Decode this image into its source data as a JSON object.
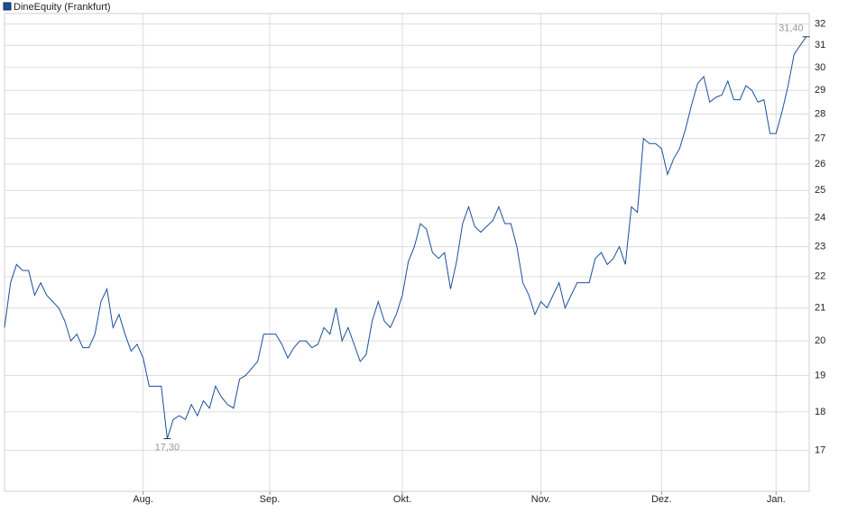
{
  "chart_data": {
    "type": "line",
    "log_scale": true,
    "grid": true,
    "ylim": [
      16,
      32.5
    ],
    "yticks": [
      17,
      18,
      19,
      20,
      21,
      22,
      23,
      24,
      25,
      26,
      27,
      28,
      29,
      30,
      31,
      32
    ],
    "xlim": [
      0,
      133.5
    ],
    "xticks": [
      {
        "value": 23,
        "label": "Aug."
      },
      {
        "value": 44,
        "label": "Sep."
      },
      {
        "value": 66,
        "label": "Okt."
      },
      {
        "value": 89,
        "label": "Nov."
      },
      {
        "value": 109,
        "label": "Dez."
      },
      {
        "value": 128,
        "label": "Jan."
      }
    ],
    "series": [
      {
        "name": "DineEquity (Frankfurt)",
        "color": "#1a4f9c",
        "values": [
          20.4,
          21.8,
          22.4,
          22.2,
          22.2,
          21.4,
          21.8,
          21.4,
          21.2,
          21.0,
          20.6,
          20.0,
          20.2,
          19.8,
          19.8,
          20.2,
          21.2,
          21.6,
          20.4,
          20.8,
          20.2,
          19.7,
          19.9,
          19.5,
          18.7,
          18.7,
          18.7,
          17.3,
          17.8,
          17.9,
          17.8,
          18.2,
          17.9,
          18.3,
          18.1,
          18.7,
          18.4,
          18.2,
          18.1,
          18.9,
          19.0,
          19.2,
          19.4,
          20.2,
          20.2,
          20.2,
          19.9,
          19.5,
          19.8,
          20.0,
          20.0,
          19.8,
          19.9,
          20.4,
          20.2,
          21.0,
          20.0,
          20.4,
          19.9,
          19.4,
          19.6,
          20.6,
          21.2,
          20.6,
          20.4,
          20.8,
          21.4,
          22.5,
          23.0,
          23.8,
          23.6,
          22.8,
          22.6,
          22.8,
          21.6,
          22.5,
          23.8,
          24.4,
          23.7,
          23.5,
          23.7,
          23.9,
          24.4,
          23.8,
          23.8,
          23.0,
          21.8,
          21.4,
          20.8,
          21.2,
          21.0,
          21.4,
          21.8,
          21.0,
          21.4,
          21.8,
          21.8,
          21.8,
          22.6,
          22.8,
          22.4,
          22.6,
          23.0,
          22.4,
          24.4,
          24.2,
          27.0,
          26.8,
          26.8,
          26.6,
          25.6,
          26.2,
          26.6,
          27.4,
          28.4,
          29.3,
          29.6,
          28.5,
          28.7,
          28.8,
          29.4,
          28.6,
          28.6,
          29.2,
          29.0,
          28.5,
          28.6,
          27.2,
          27.2,
          28.1,
          29.2,
          30.6,
          31.0,
          31.4
        ]
      }
    ],
    "annotations": [
      {
        "x": 27,
        "value": 17.3,
        "label": "17,30"
      },
      {
        "x": 133,
        "value": 31.4,
        "label": "31,40"
      }
    ]
  }
}
